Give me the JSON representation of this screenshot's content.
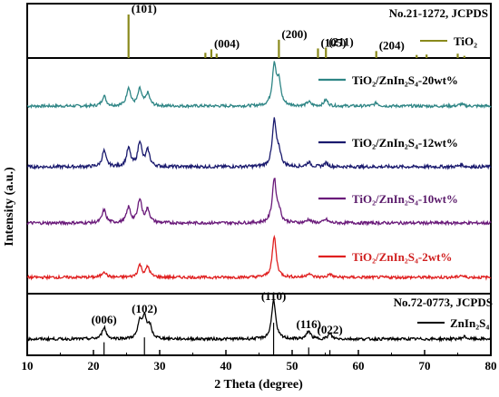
{
  "chart_data": {
    "type": "line",
    "title": "",
    "xlabel": "2 Theta (degree)",
    "ylabel": "Intensity (a.u.)",
    "xlim": [
      10,
      80
    ],
    "x_ticks": [
      10,
      20,
      30,
      40,
      50,
      60,
      70,
      80
    ],
    "grid": false,
    "y_ticks_shown": false,
    "reference_top": {
      "card": "No.21-1272, JCPDS",
      "legend": "TiO₂",
      "color": "#8a8a1c",
      "peaks": [
        {
          "x": 25.3,
          "label": "(101)",
          "h": 1.0
        },
        {
          "x": 36.9,
          "label": "",
          "h": 0.12
        },
        {
          "x": 37.8,
          "label": "(004)",
          "h": 0.2
        },
        {
          "x": 38.6,
          "label": "",
          "h": 0.1
        },
        {
          "x": 48.0,
          "label": "(200)",
          "h": 0.42
        },
        {
          "x": 53.9,
          "label": "(105)",
          "h": 0.22
        },
        {
          "x": 55.1,
          "label": "(211)",
          "h": 0.24
        },
        {
          "x": 62.7,
          "label": "(204)",
          "h": 0.16
        },
        {
          "x": 68.8,
          "label": "",
          "h": 0.07
        },
        {
          "x": 70.3,
          "label": "",
          "h": 0.08
        },
        {
          "x": 75.0,
          "label": "",
          "h": 0.1
        },
        {
          "x": 76.0,
          "label": "",
          "h": 0.05
        }
      ]
    },
    "reference_bottom": {
      "card": "No.72-0773, JCPDS",
      "legend": "ZnIn₂S₄",
      "color": "#000000",
      "peaks": [
        {
          "x": 21.6,
          "label": "(006)",
          "h": 0.4
        },
        {
          "x": 27.7,
          "label": "(102)",
          "h": 0.55
        },
        {
          "x": 47.2,
          "label": "(110)",
          "h": 1.0
        },
        {
          "x": 52.5,
          "label": "(116)",
          "h": 0.24
        },
        {
          "x": 55.7,
          "label": "(022)",
          "h": 0.16
        }
      ]
    },
    "series": [
      {
        "name": "TiO₂/ZnIn₂S₄-20wt%",
        "color": "#2e8585",
        "peaks": [
          [
            21.6,
            0.25
          ],
          [
            25.3,
            0.45
          ],
          [
            27.0,
            0.4
          ],
          [
            28.2,
            0.3
          ],
          [
            47.3,
            1.0
          ],
          [
            48.0,
            0.55
          ],
          [
            52.5,
            0.1
          ],
          [
            55.1,
            0.15
          ],
          [
            62.7,
            0.08
          ],
          [
            75.5,
            0.05
          ]
        ]
      },
      {
        "name": "TiO₂/ZnIn₂S₄-12wt%",
        "color": "#1a1a6e",
        "peaks": [
          [
            21.6,
            0.35
          ],
          [
            25.3,
            0.4
          ],
          [
            27.0,
            0.55
          ],
          [
            28.2,
            0.35
          ],
          [
            47.3,
            1.0
          ],
          [
            48.0,
            0.3
          ],
          [
            52.5,
            0.1
          ],
          [
            55.1,
            0.08
          ],
          [
            75.5,
            0.05
          ]
        ]
      },
      {
        "name": "TiO₂/ZnIn₂S₄-10wt%",
        "color": "#6a1a7a",
        "peaks": [
          [
            21.6,
            0.3
          ],
          [
            25.3,
            0.35
          ],
          [
            27.0,
            0.55
          ],
          [
            28.2,
            0.3
          ],
          [
            47.3,
            1.0
          ],
          [
            48.0,
            0.25
          ],
          [
            52.5,
            0.08
          ],
          [
            55.1,
            0.08
          ]
        ]
      },
      {
        "name": "TiO₂/ZnIn₂S₄-2wt%",
        "color": "#e02020",
        "peaks": [
          [
            21.6,
            0.15
          ],
          [
            27.0,
            0.3
          ],
          [
            28.2,
            0.25
          ],
          [
            47.3,
            1.0
          ],
          [
            52.5,
            0.1
          ],
          [
            55.7,
            0.08
          ],
          [
            75.5,
            0.05
          ]
        ]
      },
      {
        "name": "ZnIn₂S₄",
        "color": "#000000",
        "peaks": [
          [
            21.6,
            0.3
          ],
          [
            27.0,
            0.4
          ],
          [
            27.7,
            0.55
          ],
          [
            28.5,
            0.3
          ],
          [
            47.2,
            1.0
          ],
          [
            52.5,
            0.2
          ],
          [
            55.7,
            0.12
          ],
          [
            76.0,
            0.06
          ]
        ]
      }
    ]
  }
}
